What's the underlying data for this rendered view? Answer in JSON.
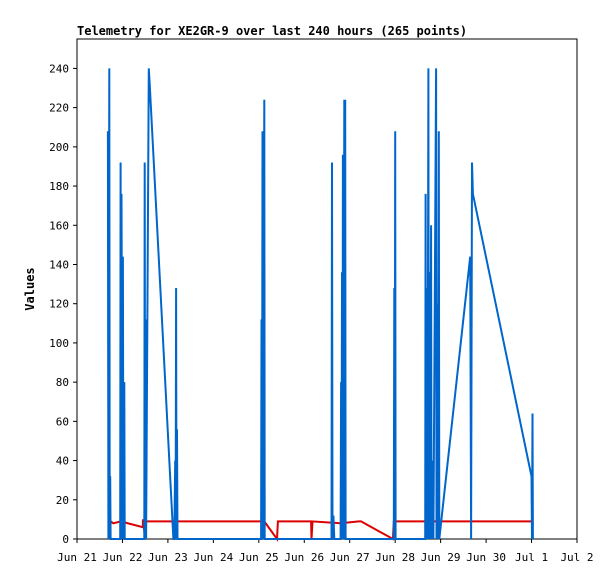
{
  "chart_data": {
    "type": "line",
    "title": "Telemetry for XE2GR-9 over last 240 hours (265 points)",
    "xlabel": "",
    "ylabel": "Values",
    "grid": false,
    "legend": "none",
    "xlim": [
      0,
      11
    ],
    "ylim": [
      0,
      255
    ],
    "x_ticks": [
      {
        "x": 0,
        "label": "Jun 21"
      },
      {
        "x": 1,
        "label": "Jun 22"
      },
      {
        "x": 2,
        "label": "Jun 23"
      },
      {
        "x": 3,
        "label": "Jun 24"
      },
      {
        "x": 4,
        "label": "Jun 25"
      },
      {
        "x": 5,
        "label": "Jun 26"
      },
      {
        "x": 6,
        "label": "Jun 27"
      },
      {
        "x": 7,
        "label": "Jun 28"
      },
      {
        "x": 8,
        "label": "Jun 29"
      },
      {
        "x": 9,
        "label": "Jun 30"
      },
      {
        "x": 10,
        "label": "Jul 1"
      },
      {
        "x": 11,
        "label": "Jul 2"
      }
    ],
    "y_ticks": [
      0,
      20,
      40,
      60,
      80,
      100,
      120,
      140,
      160,
      180,
      200,
      220,
      240
    ],
    "series": [
      {
        "color": "#dd0000",
        "points": [
          [
            0.73,
            9
          ],
          [
            0.73,
            0
          ],
          [
            0.74,
            9
          ],
          [
            0.8,
            8
          ],
          [
            0.96,
            9
          ],
          [
            1.45,
            6
          ],
          [
            1.45,
            10
          ],
          [
            1.5,
            0
          ],
          [
            1.52,
            9
          ],
          [
            1.6,
            9
          ],
          [
            4.12,
            9
          ],
          [
            4.4,
            0
          ],
          [
            4.42,
            9
          ],
          [
            5.15,
            9
          ],
          [
            5.16,
            0
          ],
          [
            5.18,
            9
          ],
          [
            5.8,
            8
          ],
          [
            6.2,
            9
          ],
          [
            6.25,
            9
          ],
          [
            6.95,
            0
          ],
          [
            6.97,
            9
          ],
          [
            10.0,
            9
          ]
        ]
      },
      {
        "color": "#0066cc",
        "points": [
          [
            0.68,
            208
          ],
          [
            0.69,
            0
          ],
          [
            0.71,
            240
          ],
          [
            0.72,
            0
          ],
          [
            0.73,
            32
          ],
          [
            0.74,
            0
          ],
          [
            0.95,
            0
          ],
          [
            0.96,
            192
          ],
          [
            0.97,
            0
          ],
          [
            0.98,
            176
          ],
          [
            1.0,
            0
          ],
          [
            1.01,
            144
          ],
          [
            1.02,
            0
          ],
          [
            1.04,
            80
          ],
          [
            1.05,
            0
          ],
          [
            1.06,
            0
          ],
          [
            1.48,
            0
          ],
          [
            1.49,
            192
          ],
          [
            1.5,
            0
          ],
          [
            1.51,
            112
          ],
          [
            1.52,
            0
          ],
          [
            1.58,
            240
          ],
          [
            1.6,
            232
          ],
          [
            2.12,
            0
          ],
          [
            2.14,
            0
          ],
          [
            2.16,
            40
          ],
          [
            2.17,
            0
          ],
          [
            2.18,
            128
          ],
          [
            2.19,
            0
          ],
          [
            2.2,
            56
          ],
          [
            2.21,
            0
          ],
          [
            4.05,
            0
          ],
          [
            4.06,
            112
          ],
          [
            4.07,
            0
          ],
          [
            4.08,
            208
          ],
          [
            4.09,
            0
          ],
          [
            4.12,
            224
          ],
          [
            4.13,
            0
          ],
          [
            5.6,
            0
          ],
          [
            5.61,
            192
          ],
          [
            5.62,
            0
          ],
          [
            5.64,
            12
          ],
          [
            5.66,
            0
          ],
          [
            5.8,
            0
          ],
          [
            5.81,
            80
          ],
          [
            5.82,
            0
          ],
          [
            5.83,
            136
          ],
          [
            5.84,
            0
          ],
          [
            5.85,
            196
          ],
          [
            5.86,
            0
          ],
          [
            5.88,
            224
          ],
          [
            5.89,
            0
          ],
          [
            5.9,
            224
          ],
          [
            5.91,
            0
          ],
          [
            6.97,
            0
          ],
          [
            6.98,
            128
          ],
          [
            6.99,
            0
          ],
          [
            7.0,
            208
          ],
          [
            7.01,
            0
          ],
          [
            7.66,
            0
          ],
          [
            7.67,
            176
          ],
          [
            7.68,
            0
          ],
          [
            7.7,
            128
          ],
          [
            7.71,
            0
          ],
          [
            7.73,
            240
          ],
          [
            7.74,
            0
          ],
          [
            7.76,
            136
          ],
          [
            7.77,
            0
          ],
          [
            7.79,
            160
          ],
          [
            7.8,
            0
          ],
          [
            7.82,
            40
          ],
          [
            7.84,
            0
          ],
          [
            7.9,
            240
          ],
          [
            7.91,
            0
          ],
          [
            7.93,
            120
          ],
          [
            7.94,
            0
          ],
          [
            7.96,
            208
          ],
          [
            7.97,
            0
          ],
          [
            8.65,
            144
          ],
          [
            8.67,
            0
          ],
          [
            8.69,
            192
          ],
          [
            8.71,
            176
          ],
          [
            10.0,
            32
          ],
          [
            10.01,
            0
          ],
          [
            10.02,
            64
          ],
          [
            10.03,
            0
          ]
        ]
      }
    ]
  }
}
